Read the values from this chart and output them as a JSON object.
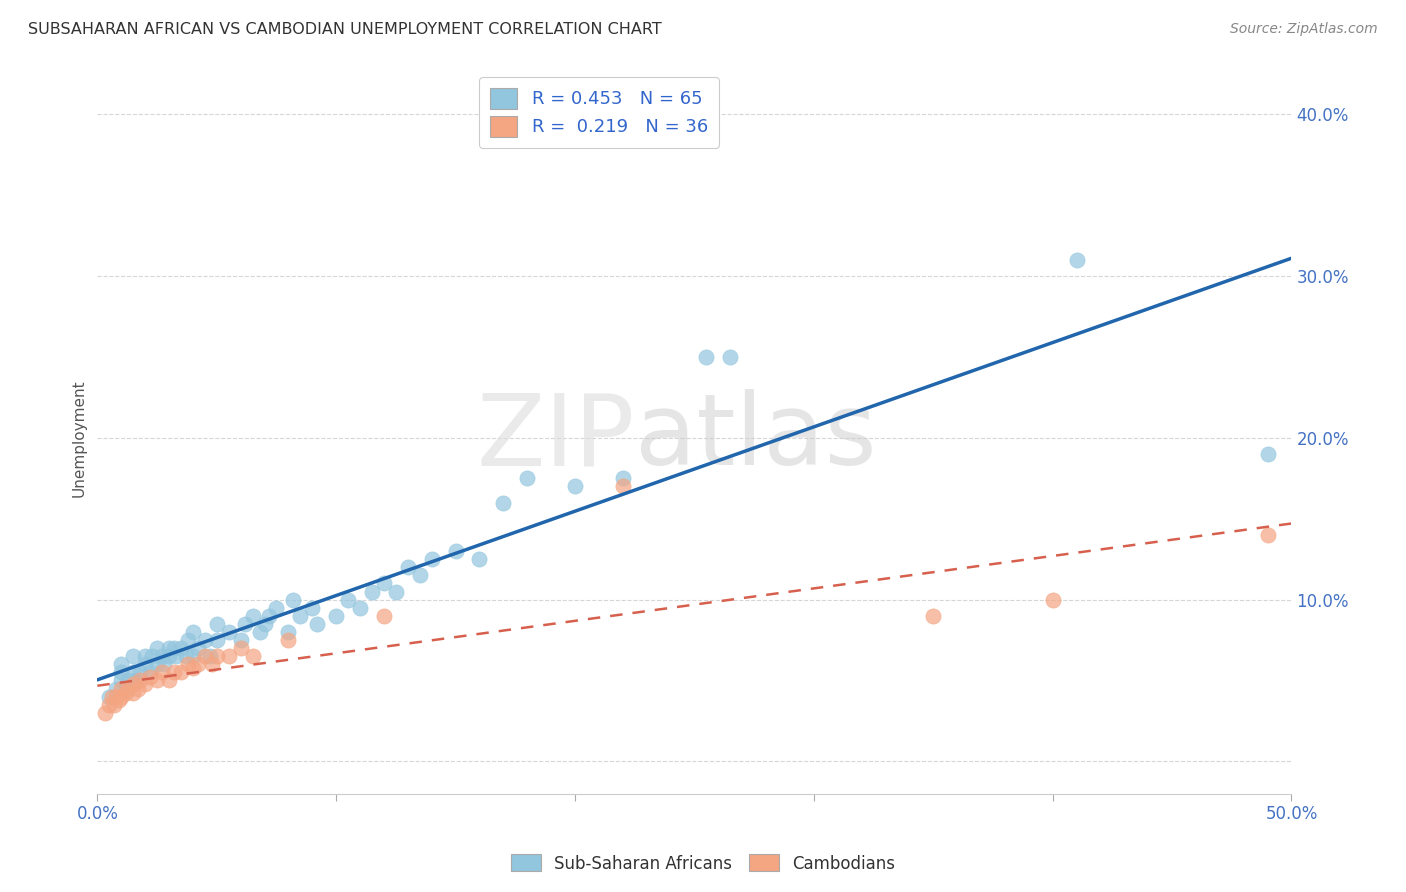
{
  "title": "SUBSAHARAN AFRICAN VS CAMBODIAN UNEMPLOYMENT CORRELATION CHART",
  "source": "Source: ZipAtlas.com",
  "ylabel": "Unemployment",
  "xlim": [
    0.0,
    0.5
  ],
  "ylim": [
    -0.02,
    0.42
  ],
  "xticks": [
    0.0,
    0.1,
    0.2,
    0.3,
    0.4,
    0.5
  ],
  "yticks": [
    0.0,
    0.1,
    0.2,
    0.3,
    0.4
  ],
  "ytick_labels": [
    "",
    "10.0%",
    "20.0%",
    "30.0%",
    "40.0%"
  ],
  "blue_color": "#92c5de",
  "pink_color": "#f4a582",
  "blue_line_color": "#2166ac",
  "pink_line_color": "#d6604d",
  "r_blue": 0.453,
  "n_blue": 65,
  "r_pink": 0.219,
  "n_pink": 36,
  "legend_label_blue": "Sub-Saharan Africans",
  "legend_label_pink": "Cambodians",
  "watermark_zip": "ZIP",
  "watermark_atlas": "atlas",
  "background_color": "#ffffff",
  "grid_color": "#cccccc",
  "blue_scatter_x": [
    0.005,
    0.008,
    0.01,
    0.01,
    0.01,
    0.012,
    0.013,
    0.015,
    0.015,
    0.016,
    0.018,
    0.02,
    0.02,
    0.022,
    0.023,
    0.025,
    0.025,
    0.027,
    0.028,
    0.03,
    0.03,
    0.032,
    0.033,
    0.035,
    0.037,
    0.038,
    0.04,
    0.04,
    0.042,
    0.045,
    0.047,
    0.05,
    0.05,
    0.055,
    0.06,
    0.062,
    0.065,
    0.068,
    0.07,
    0.072,
    0.075,
    0.08,
    0.082,
    0.085,
    0.09,
    0.092,
    0.1,
    0.105,
    0.11,
    0.115,
    0.12,
    0.125,
    0.13,
    0.135,
    0.14,
    0.15,
    0.16,
    0.17,
    0.18,
    0.2,
    0.22,
    0.255,
    0.265,
    0.41,
    0.49
  ],
  "blue_scatter_y": [
    0.04,
    0.045,
    0.05,
    0.055,
    0.06,
    0.045,
    0.05,
    0.055,
    0.065,
    0.05,
    0.055,
    0.06,
    0.065,
    0.055,
    0.065,
    0.06,
    0.07,
    0.065,
    0.06,
    0.065,
    0.07,
    0.07,
    0.065,
    0.07,
    0.065,
    0.075,
    0.065,
    0.08,
    0.07,
    0.075,
    0.065,
    0.075,
    0.085,
    0.08,
    0.075,
    0.085,
    0.09,
    0.08,
    0.085,
    0.09,
    0.095,
    0.08,
    0.1,
    0.09,
    0.095,
    0.085,
    0.09,
    0.1,
    0.095,
    0.105,
    0.11,
    0.105,
    0.12,
    0.115,
    0.125,
    0.13,
    0.125,
    0.16,
    0.175,
    0.17,
    0.175,
    0.25,
    0.25,
    0.31,
    0.19
  ],
  "pink_scatter_x": [
    0.003,
    0.005,
    0.006,
    0.007,
    0.008,
    0.009,
    0.01,
    0.01,
    0.012,
    0.013,
    0.015,
    0.015,
    0.017,
    0.018,
    0.02,
    0.022,
    0.025,
    0.027,
    0.03,
    0.032,
    0.035,
    0.038,
    0.04,
    0.042,
    0.045,
    0.048,
    0.05,
    0.055,
    0.06,
    0.065,
    0.08,
    0.12,
    0.22,
    0.35,
    0.4,
    0.49
  ],
  "pink_scatter_y": [
    0.03,
    0.035,
    0.04,
    0.035,
    0.04,
    0.038,
    0.04,
    0.045,
    0.042,
    0.045,
    0.042,
    0.048,
    0.045,
    0.05,
    0.048,
    0.052,
    0.05,
    0.055,
    0.05,
    0.055,
    0.055,
    0.06,
    0.058,
    0.06,
    0.065,
    0.06,
    0.065,
    0.065,
    0.07,
    0.065,
    0.075,
    0.09,
    0.17,
    0.09,
    0.1,
    0.14
  ]
}
